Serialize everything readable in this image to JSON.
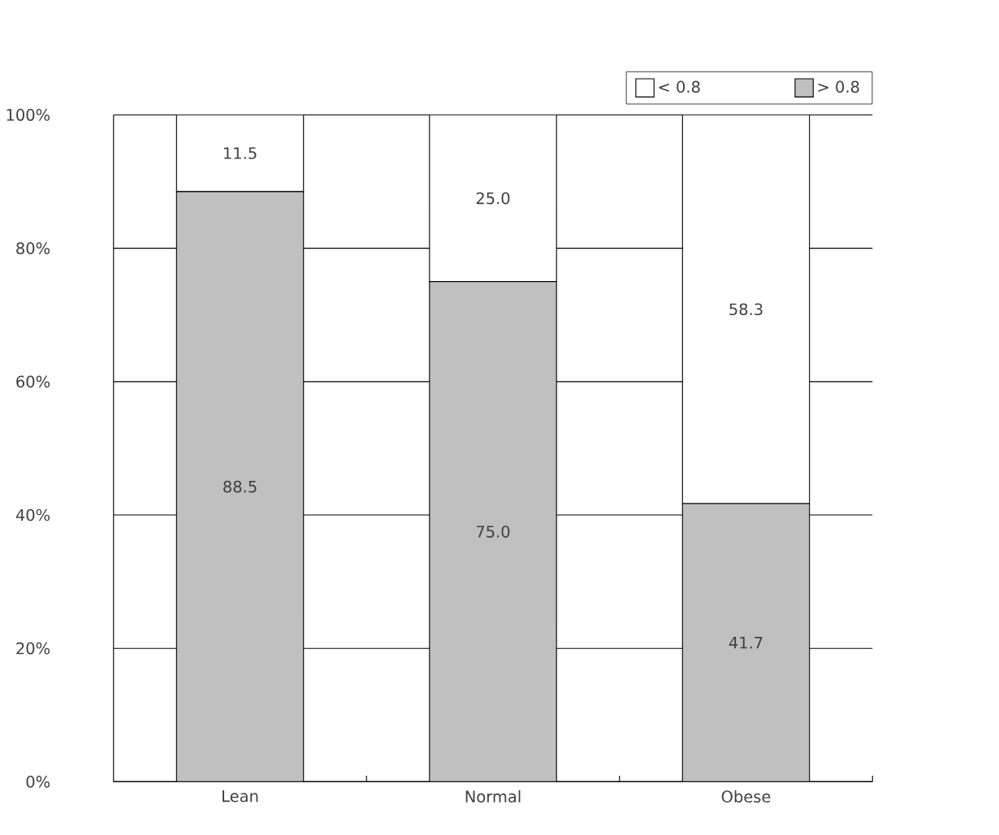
{
  "chart_data": {
    "type": "bar",
    "stacked": true,
    "categories": [
      "Lean",
      "Normal",
      "Obese"
    ],
    "series": [
      {
        "name": "> 0.8",
        "color": "#c0c0c0",
        "values": [
          88.5,
          75.0,
          41.7
        ],
        "value_labels": [
          "88.5",
          "75.0",
          "41.7"
        ]
      },
      {
        "name": "< 0.8",
        "color": "#ffffff",
        "values": [
          11.5,
          25.0,
          58.3
        ],
        "value_labels": [
          "11.5",
          "25.0",
          "58.3"
        ]
      }
    ],
    "ylim": [
      0,
      100
    ],
    "yticks": [
      {
        "value": 0,
        "label": "0%"
      },
      {
        "value": 20,
        "label": "20%"
      },
      {
        "value": 40,
        "label": "40%"
      },
      {
        "value": 60,
        "label": "60%"
      },
      {
        "value": 80,
        "label": "80%"
      },
      {
        "value": 100,
        "label": "100%"
      }
    ],
    "grid": "y",
    "legend": "top right"
  }
}
